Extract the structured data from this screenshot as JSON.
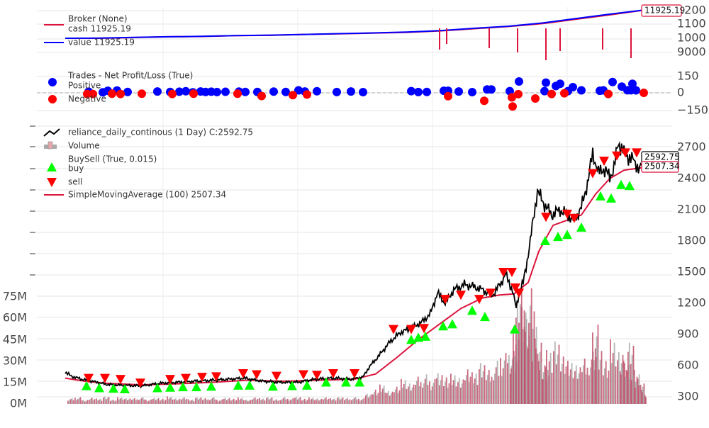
{
  "chart_data": [
    {
      "type": "line",
      "panel": "broker",
      "legend": [
        {
          "label": "Broker (None)",
          "color": "#ff0000"
        },
        {
          "label": "cash 11925.19",
          "color": "#dc143c"
        },
        {
          "label": "value 11925.19",
          "color": "#0000ff"
        }
      ],
      "y_ticks": [
        9000,
        1000,
        1100,
        1200
      ],
      "y_tick_labels": [
        "9000",
        "1000",
        "1100",
        "1200"
      ],
      "last_value_label": "11925.19",
      "series": [
        {
          "name": "cash",
          "values": [
            10000,
            10000,
            10050,
            10100,
            10120,
            10180,
            10200,
            10260,
            10300,
            10350,
            10400,
            10500,
            10650,
            10800,
            11000,
            11300,
            11600,
            11925.19
          ]
        },
        {
          "name": "value",
          "values": [
            10000,
            10010,
            10060,
            10100,
            10130,
            10180,
            10210,
            10260,
            10310,
            10360,
            10420,
            10520,
            10680,
            10820,
            11040,
            11350,
            11650,
            11925.19
          ]
        }
      ]
    },
    {
      "type": "scatter",
      "panel": "trades",
      "legend": [
        {
          "label": "Trades - Net Profit/Loss (True)",
          "color": "none"
        },
        {
          "label": "Positive",
          "color": "#0000ff"
        },
        {
          "label": "Negative",
          "color": "#ff0000"
        }
      ],
      "y_ticks": [
        -150,
        0,
        150
      ],
      "y_tick_labels": [
        "−150",
        "0",
        "150"
      ],
      "ylim": [
        -200,
        250
      ],
      "positive": [
        [
          125,
          10
        ],
        [
          145,
          5
        ],
        [
          152,
          18
        ],
        [
          165,
          20
        ],
        [
          180,
          8
        ],
        [
          222,
          12
        ],
        [
          240,
          8
        ],
        [
          253,
          10
        ],
        [
          262,
          14
        ],
        [
          272,
          5
        ],
        [
          283,
          12
        ],
        [
          290,
          8
        ],
        [
          298,
          10
        ],
        [
          306,
          7
        ],
        [
          318,
          9
        ],
        [
          337,
          11
        ],
        [
          346,
          8
        ],
        [
          363,
          8
        ],
        [
          386,
          11
        ],
        [
          403,
          8
        ],
        [
          421,
          22
        ],
        [
          430,
          12
        ],
        [
          447,
          14
        ],
        [
          475,
          7
        ],
        [
          495,
          12
        ],
        [
          512,
          6
        ],
        [
          580,
          15
        ],
        [
          590,
          7
        ],
        [
          602,
          8
        ],
        [
          626,
          18
        ],
        [
          632,
          18
        ],
        [
          647,
          12
        ],
        [
          666,
          6
        ],
        [
          687,
          30
        ],
        [
          693,
          30
        ],
        [
          719,
          15
        ],
        [
          732,
          100
        ],
        [
          770,
          90
        ],
        [
          768,
          15
        ],
        [
          784,
          60
        ],
        [
          790,
          80
        ],
        [
          801,
          15
        ],
        [
          808,
          50
        ],
        [
          820,
          22
        ],
        [
          846,
          18
        ],
        [
          851,
          22
        ],
        [
          864,
          95
        ],
        [
          877,
          55
        ],
        [
          885,
          23
        ],
        [
          890,
          23
        ],
        [
          892,
          80
        ],
        [
          897,
          22
        ]
      ],
      "negative": [
        [
          123,
          -10
        ],
        [
          131,
          -10
        ],
        [
          158,
          -8
        ],
        [
          170,
          -10
        ],
        [
          200,
          -8
        ],
        [
          243,
          -10
        ],
        [
          273,
          -8
        ],
        [
          335,
          -8
        ],
        [
          369,
          -28
        ],
        [
          413,
          -20
        ],
        [
          433,
          -15
        ],
        [
          632,
          -30
        ],
        [
          683,
          -70
        ],
        [
          722,
          -40
        ],
        [
          723,
          -120
        ],
        [
          731,
          -12
        ],
        [
          755,
          -50
        ],
        [
          778,
          -10
        ],
        [
          796,
          -4
        ],
        [
          858,
          -10
        ],
        [
          908,
          0
        ]
      ]
    },
    {
      "type": "line",
      "panel": "price",
      "legend": [
        {
          "label": "reliance_daily_continous (1 Day) C:2592.75",
          "color": "#000000"
        },
        {
          "label": "Volume",
          "color": "#e8a7ad"
        },
        {
          "label": "BuySell (True, 0.015)",
          "color": "none"
        },
        {
          "label": "buy",
          "color": "#00ff00"
        },
        {
          "label": "sell",
          "color": "#ff0000"
        },
        {
          "label": "SimpleMovingAverage (100) 2507.34",
          "color": "#dc143c"
        }
      ],
      "y_ticks": [
        300,
        600,
        900,
        1200,
        1500,
        1800,
        2100,
        2400,
        2700
      ],
      "y_tick_labels": [
        "300",
        "600",
        "900",
        "1200",
        "1500",
        "1800",
        "2100",
        "2400",
        "2700"
      ],
      "ylim": [
        220,
        2860
      ],
      "last_close_label": "2592.75",
      "last_sma_label": "2507.34",
      "close": [
        [
          92,
          540
        ],
        [
          100,
          500
        ],
        [
          115,
          470
        ],
        [
          130,
          450
        ],
        [
          150,
          420
        ],
        [
          175,
          410
        ],
        [
          200,
          405
        ],
        [
          225,
          430
        ],
        [
          250,
          440
        ],
        [
          275,
          450
        ],
        [
          300,
          460
        ],
        [
          325,
          470
        ],
        [
          345,
          480
        ],
        [
          370,
          450
        ],
        [
          395,
          440
        ],
        [
          420,
          440
        ],
        [
          445,
          470
        ],
        [
          470,
          480
        ],
        [
          495,
          470
        ],
        [
          512,
          490
        ],
        [
          520,
          580
        ],
        [
          535,
          700
        ],
        [
          550,
          830
        ],
        [
          565,
          920
        ],
        [
          580,
          960
        ],
        [
          595,
          1020
        ],
        [
          607,
          1100
        ],
        [
          617,
          1300
        ],
        [
          628,
          1200
        ],
        [
          640,
          1330
        ],
        [
          655,
          1380
        ],
        [
          668,
          1360
        ],
        [
          680,
          1330
        ],
        [
          695,
          1280
        ],
        [
          707,
          1400
        ],
        [
          713,
          1480
        ],
        [
          718,
          1400
        ],
        [
          723,
          1320
        ],
        [
          728,
          1150
        ],
        [
          732,
          1300
        ],
        [
          738,
          1400
        ],
        [
          742,
          1550
        ],
        [
          748,
          1800
        ],
        [
          752,
          2000
        ],
        [
          758,
          2280
        ],
        [
          768,
          2150
        ],
        [
          778,
          2050
        ],
        [
          790,
          2100
        ],
        [
          800,
          2050
        ],
        [
          810,
          2000
        ],
        [
          820,
          2120
        ],
        [
          830,
          2400
        ],
        [
          836,
          2650
        ],
        [
          844,
          2450
        ],
        [
          850,
          2500
        ],
        [
          860,
          2420
        ],
        [
          866,
          2500
        ],
        [
          872,
          2750
        ],
        [
          880,
          2650
        ],
        [
          888,
          2600
        ],
        [
          896,
          2560
        ],
        [
          902,
          2480
        ],
        [
          910,
          2592.75
        ]
      ],
      "sma": [
        [
          92,
          480
        ],
        [
          120,
          450
        ],
        [
          150,
          430
        ],
        [
          200,
          415
        ],
        [
          250,
          425
        ],
        [
          300,
          440
        ],
        [
          350,
          460
        ],
        [
          400,
          450
        ],
        [
          450,
          460
        ],
        [
          500,
          470
        ],
        [
          530,
          520
        ],
        [
          560,
          680
        ],
        [
          590,
          850
        ],
        [
          620,
          1000
        ],
        [
          650,
          1150
        ],
        [
          680,
          1250
        ],
        [
          705,
          1280
        ],
        [
          725,
          1290
        ],
        [
          745,
          1400
        ],
        [
          760,
          1700
        ],
        [
          780,
          1950
        ],
        [
          800,
          2000
        ],
        [
          820,
          2050
        ],
        [
          840,
          2250
        ],
        [
          860,
          2400
        ],
        [
          880,
          2480
        ],
        [
          900,
          2500
        ],
        [
          910,
          2507.34
        ]
      ],
      "buy": [
        [
          122,
          405
        ],
        [
          140,
          385
        ],
        [
          160,
          380
        ],
        [
          176,
          375
        ],
        [
          222,
          385
        ],
        [
          240,
          390
        ],
        [
          258,
          395
        ],
        [
          277,
          395
        ],
        [
          298,
          400
        ],
        [
          336,
          410
        ],
        [
          352,
          410
        ],
        [
          385,
          400
        ],
        [
          412,
          405
        ],
        [
          433,
          410
        ],
        [
          460,
          440
        ],
        [
          488,
          440
        ],
        [
          507,
          440
        ],
        [
          580,
          850
        ],
        [
          590,
          870
        ],
        [
          600,
          880
        ],
        [
          625,
          980
        ],
        [
          638,
          1000
        ],
        [
          666,
          1130
        ],
        [
          684,
          1070
        ],
        [
          726,
          950
        ],
        [
          769,
          1800
        ],
        [
          787,
          1840
        ],
        [
          800,
          1860
        ],
        [
          820,
          1930
        ],
        [
          847,
          2230
        ],
        [
          862,
          2210
        ],
        [
          876,
          2340
        ],
        [
          888,
          2330
        ]
      ],
      "sell": [
        [
          125,
          480
        ],
        [
          148,
          480
        ],
        [
          170,
          470
        ],
        [
          198,
          435
        ],
        [
          240,
          470
        ],
        [
          262,
          480
        ],
        [
          285,
          490
        ],
        [
          305,
          495
        ],
        [
          343,
          525
        ],
        [
          362,
          515
        ],
        [
          390,
          500
        ],
        [
          428,
          515
        ],
        [
          447,
          510
        ],
        [
          470,
          525
        ],
        [
          500,
          525
        ],
        [
          555,
          950
        ],
        [
          580,
          950
        ],
        [
          598,
          960
        ],
        [
          628,
          1240
        ],
        [
          650,
          1280
        ],
        [
          676,
          1240
        ],
        [
          692,
          1300
        ],
        [
          710,
          1500
        ],
        [
          722,
          1500
        ],
        [
          727,
          1350
        ],
        [
          732,
          1300
        ],
        [
          770,
          2030
        ],
        [
          800,
          2060
        ],
        [
          810,
          2020
        ],
        [
          836,
          2450
        ],
        [
          852,
          2570
        ],
        [
          870,
          2620
        ],
        [
          882,
          2650
        ],
        [
          898,
          2650
        ]
      ]
    },
    {
      "type": "bar",
      "panel": "volume",
      "y_ticks": [
        0,
        15,
        30,
        45,
        60,
        75
      ],
      "y_tick_labels": [
        "0M",
        "15M",
        "30M",
        "45M",
        "60M",
        "75M"
      ],
      "ylim": [
        0,
        150
      ],
      "x_range": [
        92,
        910
      ],
      "bar_width": 1.8,
      "volumes": [
        [
          95,
          5
        ],
        [
          105,
          6
        ],
        [
          115,
          4
        ],
        [
          125,
          6
        ],
        [
          135,
          5
        ],
        [
          145,
          7
        ],
        [
          155,
          4
        ],
        [
          165,
          6
        ],
        [
          175,
          5
        ],
        [
          185,
          5
        ],
        [
          195,
          6
        ],
        [
          205,
          4
        ],
        [
          215,
          6
        ],
        [
          225,
          5
        ],
        [
          235,
          7
        ],
        [
          245,
          5
        ],
        [
          255,
          6
        ],
        [
          265,
          4
        ],
        [
          275,
          6
        ],
        [
          285,
          5
        ],
        [
          295,
          6
        ],
        [
          305,
          4
        ],
        [
          315,
          6
        ],
        [
          325,
          5
        ],
        [
          335,
          6
        ],
        [
          345,
          4
        ],
        [
          355,
          6
        ],
        [
          365,
          5
        ],
        [
          375,
          6
        ],
        [
          385,
          4
        ],
        [
          395,
          6
        ],
        [
          405,
          5
        ],
        [
          415,
          7
        ],
        [
          425,
          5
        ],
        [
          435,
          6
        ],
        [
          445,
          5
        ],
        [
          455,
          6
        ],
        [
          465,
          5
        ],
        [
          475,
          6
        ],
        [
          485,
          5
        ],
        [
          495,
          6
        ],
        [
          505,
          5
        ],
        [
          515,
          10
        ],
        [
          525,
          14
        ],
        [
          535,
          18
        ],
        [
          545,
          12
        ],
        [
          555,
          16
        ],
        [
          565,
          22
        ],
        [
          575,
          18
        ],
        [
          585,
          24
        ],
        [
          595,
          26
        ],
        [
          605,
          22
        ],
        [
          615,
          30
        ],
        [
          625,
          26
        ],
        [
          635,
          28
        ],
        [
          645,
          24
        ],
        [
          655,
          32
        ],
        [
          665,
          28
        ],
        [
          675,
          36
        ],
        [
          685,
          30
        ],
        [
          695,
          38
        ],
        [
          705,
          45
        ],
        [
          715,
          48
        ],
        [
          720,
          52
        ],
        [
          723,
          70
        ],
        [
          727,
          95
        ],
        [
          731,
          110
        ],
        [
          735,
          85
        ],
        [
          740,
          75
        ],
        [
          745,
          102
        ],
        [
          750,
          68
        ],
        [
          755,
          54
        ],
        [
          760,
          40
        ],
        [
          765,
          36
        ],
        [
          770,
          50
        ],
        [
          780,
          58
        ],
        [
          790,
          44
        ],
        [
          800,
          38
        ],
        [
          810,
          34
        ],
        [
          820,
          40
        ],
        [
          830,
          46
        ],
        [
          835,
          70
        ],
        [
          840,
          55
        ],
        [
          850,
          42
        ],
        [
          860,
          60
        ],
        [
          870,
          48
        ],
        [
          875,
          40
        ],
        [
          880,
          36
        ],
        [
          885,
          54
        ],
        [
          890,
          30
        ],
        [
          895,
          26
        ],
        [
          900,
          18
        ],
        [
          905,
          14
        ],
        [
          910,
          10
        ]
      ]
    }
  ]
}
